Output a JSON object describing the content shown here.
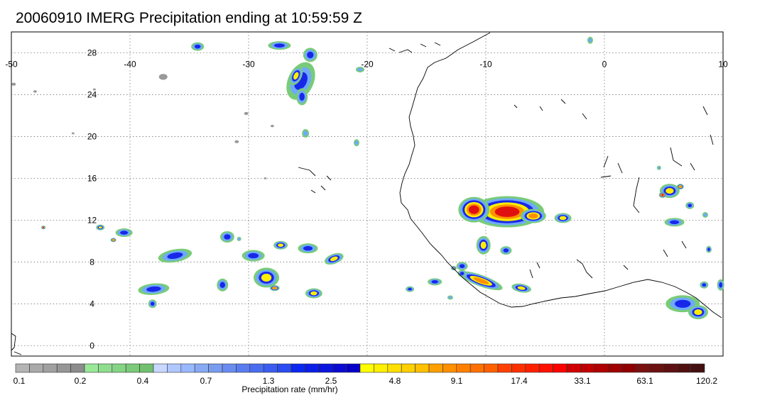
{
  "title": "20060910 IMERG Precipitation ending at 10:59:59 Z",
  "map": {
    "lon_range": [
      -50,
      10
    ],
    "lat_range": [
      -1,
      30
    ],
    "lon_ticks": [
      -50,
      -40,
      -30,
      -20,
      -10,
      0,
      10
    ],
    "lat_ticks": [
      0,
      4,
      8,
      12,
      16,
      20,
      24,
      28
    ],
    "grid": "dotted"
  },
  "colorbar": {
    "label": "Precipitation rate (mm/hr)",
    "tick_labels": [
      "0.1",
      "0.2",
      "0.4",
      "0.7",
      "1.3",
      "2.5",
      "4.8",
      "9.1",
      "17.4",
      "33.1",
      "63.1",
      "120.2"
    ],
    "colors": [
      "#b4b4b4",
      "#aaaaaa",
      "#a0a0a0",
      "#969696",
      "#8c8c8c",
      "#98e898",
      "#8ede8e",
      "#84d484",
      "#7aca7a",
      "#70c070",
      "#c8d8ff",
      "#b0c8ff",
      "#98b8ff",
      "#88aaf4",
      "#789cf0",
      "#6a8cf0",
      "#5a7cf0",
      "#4a6cf0",
      "#3a5cf0",
      "#2a4cf0",
      "#0a28f0",
      "#0a1ee6",
      "#0a14dc",
      "#0a0ad2",
      "#0800c8",
      "#ffff00",
      "#fff000",
      "#ffe000",
      "#ffd000",
      "#ffc000",
      "#ffa000",
      "#ff9000",
      "#ff8000",
      "#ff7000",
      "#ff6000",
      "#ff4000",
      "#ff3000",
      "#ff2000",
      "#ff1000",
      "#ff0000",
      "#d00000",
      "#c00000",
      "#b00000",
      "#a00000",
      "#900000",
      "#7a1010",
      "#6c1010",
      "#5e1010",
      "#501010",
      "#421010"
    ]
  },
  "palette": {
    "gray": "#9a9a9a",
    "green": "#78cc78",
    "light_blue": "#6fa8ff",
    "blue": "#1828e8",
    "yellow": "#ffee00",
    "orange": "#ff9000",
    "red": "#e01010"
  }
}
